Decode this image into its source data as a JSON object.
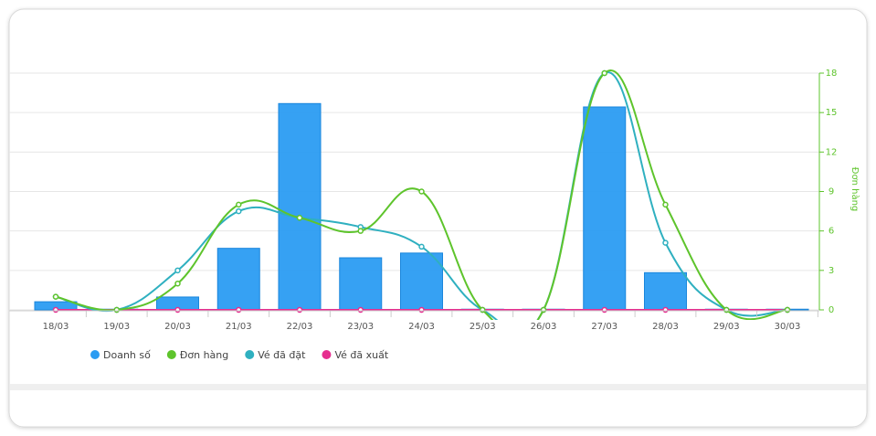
{
  "chart_data": {
    "type": "combo",
    "categories": [
      "18/03",
      "19/03",
      "20/03",
      "21/03",
      "22/03",
      "23/03",
      "24/03",
      "25/03",
      "26/03",
      "27/03",
      "28/03",
      "29/03",
      "30/03"
    ],
    "ylim": [
      0,
      35
    ],
    "y2label": "Đơn hàng",
    "y2lim": [
      0,
      18
    ],
    "y2ticks": [
      0,
      3,
      6,
      9,
      12,
      15,
      18
    ],
    "grid": true,
    "legend": "bottom-left",
    "series": [
      {
        "name": "Doanh số",
        "type": "bar",
        "color": "#2b9cf2",
        "values": [
          1.2,
          0.1,
          1.9,
          9.1,
          30.5,
          7.7,
          8.4,
          0.1,
          0.1,
          30,
          5.5,
          0.1,
          0.1
        ]
      },
      {
        "name": "Đơn hàng",
        "type": "line",
        "axis": "y2",
        "color": "#5ec42c",
        "values": [
          1,
          0,
          2,
          8,
          7,
          6,
          9,
          0,
          0,
          18,
          8,
          0,
          0
        ]
      },
      {
        "name": "Vé đã đặt",
        "type": "line",
        "axis": "y2",
        "color": "#2fb0c0",
        "values": [
          1,
          0,
          3,
          7.5,
          7,
          6.3,
          4.8,
          0,
          0,
          18,
          5.1,
          0,
          0
        ]
      },
      {
        "name": "Vé đã xuất",
        "type": "line",
        "axis": "y2",
        "color": "#e62e8f",
        "values": [
          0,
          0,
          0,
          0,
          0,
          0,
          0,
          0,
          0,
          0,
          0,
          0,
          0
        ]
      }
    ]
  }
}
